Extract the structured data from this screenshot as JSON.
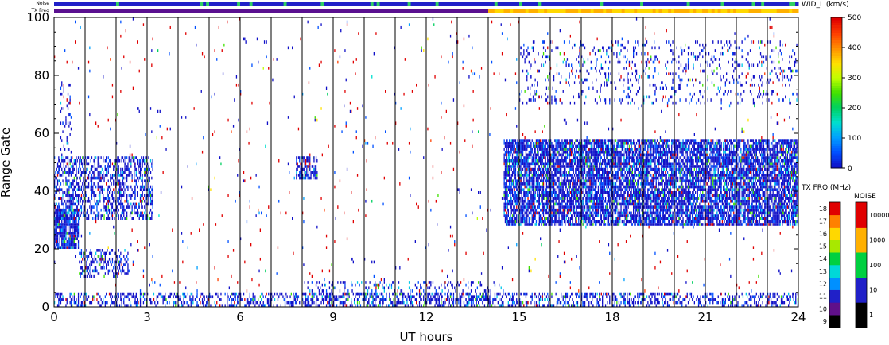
{
  "chart_data": {
    "type": "heatmap",
    "xlabel": "UT hours",
    "ylabel": "Range Gate",
    "xlim": [
      0,
      24
    ],
    "ylim": [
      0,
      100
    ],
    "xticks": [
      "0",
      "3",
      "6",
      "9",
      "12",
      "15",
      "18",
      "21",
      "24"
    ],
    "yticks": [
      "0",
      "20",
      "40",
      "60",
      "80",
      "100"
    ],
    "status_bars": {
      "noise_label": "Noise",
      "txfreq_label": "TX Freq",
      "txfreq_switch_hour": 14
    },
    "colorbars": {
      "width": {
        "title": "WID_L (km/s)",
        "ticks": [
          "0",
          "100",
          "200",
          "300",
          "400",
          "500"
        ],
        "colors": [
          "#1010c8",
          "#0050ff",
          "#00a0ff",
          "#00e0d0",
          "#00d060",
          "#40e000",
          "#c0ff00",
          "#ffe000",
          "#ff9000",
          "#ff4000",
          "#e00000"
        ]
      },
      "txfreq": {
        "title": "TX FRQ (MHz)",
        "ticks": [
          "9",
          "10",
          "11",
          "12",
          "13",
          "14",
          "15",
          "16",
          "17",
          "18"
        ],
        "colors": [
          "#000000",
          "#60108a",
          "#2020c8",
          "#0090ff",
          "#00d8d8",
          "#00d040",
          "#a8e800",
          "#ffd800",
          "#ff8000",
          "#e00000"
        ]
      },
      "noise": {
        "title": "NOISE",
        "ticks": [
          "1",
          "10",
          "100",
          "1000",
          "10000"
        ],
        "colors": [
          "#000000",
          "#2020c8",
          "#00d040",
          "#ffb000",
          "#e00000"
        ]
      }
    },
    "scatter_regions": [
      {
        "name": "near-range",
        "x": [
          0,
          24
        ],
        "y": [
          0,
          5
        ],
        "density": 0.35
      },
      {
        "name": "near-range-2",
        "x": [
          8,
          14.5
        ],
        "y": [
          0,
          9
        ],
        "density": 0.18
      },
      {
        "name": "dawn-block",
        "x": [
          0,
          0.8
        ],
        "y": [
          20,
          34
        ],
        "density": 0.85
      },
      {
        "name": "dawn-band-1",
        "x": [
          0,
          3.2
        ],
        "y": [
          30,
          52
        ],
        "density": 0.45
      },
      {
        "name": "dawn-band-2",
        "x": [
          0.8,
          2.4
        ],
        "y": [
          10,
          20
        ],
        "density": 0.35
      },
      {
        "name": "dawn-band-3",
        "x": [
          0.2,
          0.6
        ],
        "y": [
          52,
          78
        ],
        "density": 0.2
      },
      {
        "name": "cluster-8h",
        "x": [
          7.8,
          8.5
        ],
        "y": [
          44,
          52
        ],
        "density": 0.6
      },
      {
        "name": "afternoon-band",
        "x": [
          14.5,
          24
        ],
        "y": [
          28,
          58
        ],
        "density": 0.75
      },
      {
        "name": "far-range",
        "x": [
          15,
          24
        ],
        "y": [
          70,
          92
        ],
        "density": 0.12
      },
      {
        "name": "sparse",
        "x": [
          0,
          24
        ],
        "y": [
          0,
          100
        ],
        "density": 0.012
      }
    ]
  }
}
